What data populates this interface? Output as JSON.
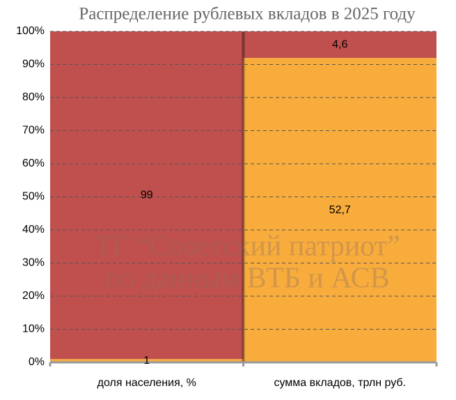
{
  "chart_data": {
    "type": "bar",
    "stacking": "percent",
    "title": "Распределение рублевых вкладов в 2025 году",
    "annotations": [
      "ТГ “Советский патриот”",
      "по данным ВТБ и АСВ"
    ],
    "categories": [
      "доля населения, %",
      "сумма вкладов, трлн руб."
    ],
    "series": [
      {
        "color": "#f8ac3c",
        "values": [
          1,
          52.7
        ],
        "value_labels": [
          "1",
          "52,7"
        ]
      },
      {
        "color": "#c0504d",
        "values": [
          99,
          4.6
        ],
        "value_labels": [
          "99",
          "4,6"
        ]
      }
    ],
    "ylim": [
      0,
      100
    ],
    "yticks": [
      {
        "value": 0,
        "label": "0%"
      },
      {
        "value": 10,
        "label": "10%"
      },
      {
        "value": 20,
        "label": "20%"
      },
      {
        "value": 30,
        "label": "30%"
      },
      {
        "value": 40,
        "label": "40%"
      },
      {
        "value": 50,
        "label": "50%"
      },
      {
        "value": 60,
        "label": "60%"
      },
      {
        "value": 70,
        "label": "70%"
      },
      {
        "value": 80,
        "label": "80%"
      },
      {
        "value": 90,
        "label": "90%"
      },
      {
        "value": 100,
        "label": "100%"
      }
    ],
    "grid": true
  }
}
